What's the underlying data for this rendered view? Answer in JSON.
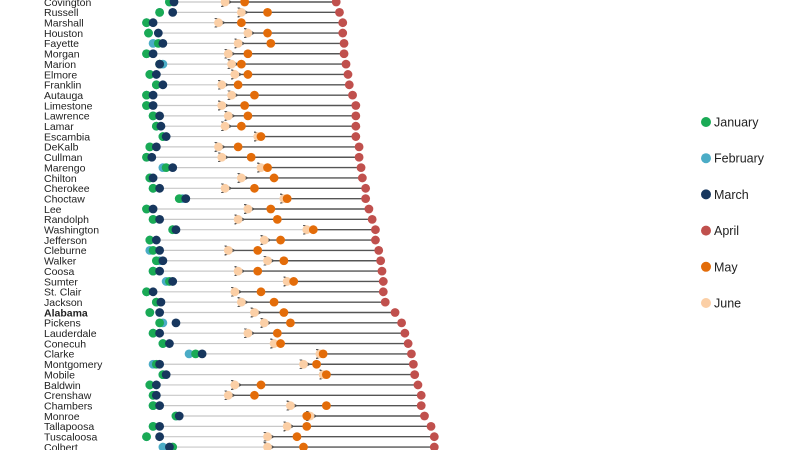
{
  "chart_data": {
    "type": "dot-plot",
    "title": "",
    "xlabel": "",
    "ylabel": "",
    "x_unit": "month index (1 = Jan start)",
    "xlim": [
      1.0,
      6.4
    ],
    "legend": {
      "placement": "right",
      "entries": [
        {
          "name": "January",
          "color": "#1aaa55"
        },
        {
          "name": "February",
          "color": "#4bacc6"
        },
        {
          "name": "March",
          "color": "#17375e"
        },
        {
          "name": "April",
          "color": "#c0504d"
        },
        {
          "name": "May",
          "color": "#e36c09"
        },
        {
          "name": "June",
          "color": "#fbcfa6"
        }
      ]
    },
    "months": [
      "January",
      "February",
      "March",
      "April",
      "May",
      "June"
    ],
    "rows": [
      {
        "county": "Covington",
        "values": [
          1.45,
          1.45,
          1.52,
          4.0,
          2.6,
          2.3
        ]
      },
      {
        "county": "Russell",
        "values": [
          1.3,
          1.3,
          1.5,
          4.05,
          2.95,
          2.55
        ]
      },
      {
        "county": "Marshall",
        "values": [
          1.1,
          1.1,
          1.2,
          4.1,
          2.55,
          2.2
        ]
      },
      {
        "county": "Houston",
        "values": [
          1.13,
          1.13,
          1.28,
          4.1,
          2.95,
          2.65
        ]
      },
      {
        "county": "Fayette",
        "values": [
          1.28,
          1.2,
          1.35,
          4.12,
          3.0,
          2.5
        ]
      },
      {
        "county": "Morgan",
        "values": [
          1.1,
          1.1,
          1.2,
          4.12,
          2.65,
          2.35
        ]
      },
      {
        "county": "Marion",
        "values": [
          1.3,
          1.35,
          1.3,
          4.15,
          2.55,
          2.4
        ]
      },
      {
        "county": "Elmore",
        "values": [
          1.15,
          1.15,
          1.25,
          4.18,
          2.65,
          2.45
        ]
      },
      {
        "county": "Franklin",
        "values": [
          1.25,
          1.25,
          1.35,
          4.2,
          2.5,
          2.25
        ]
      },
      {
        "county": "Autauga",
        "values": [
          1.1,
          1.1,
          1.2,
          4.25,
          2.75,
          2.4
        ]
      },
      {
        "county": "Limestone",
        "values": [
          1.1,
          1.1,
          1.2,
          4.3,
          2.6,
          2.25
        ]
      },
      {
        "county": "Lawrence",
        "values": [
          1.2,
          1.2,
          1.3,
          4.3,
          2.65,
          2.35
        ]
      },
      {
        "county": "Lamar",
        "values": [
          1.25,
          1.25,
          1.32,
          4.3,
          2.55,
          2.3
        ]
      },
      {
        "county": "Escambia",
        "values": [
          1.35,
          1.35,
          1.4,
          4.3,
          2.85,
          2.8
        ]
      },
      {
        "county": "DeKalb",
        "values": [
          1.15,
          1.15,
          1.25,
          4.35,
          2.5,
          2.2
        ]
      },
      {
        "county": "Cullman",
        "values": [
          1.1,
          1.1,
          1.18,
          4.35,
          2.7,
          2.25
        ]
      },
      {
        "county": "Marengo",
        "values": [
          1.4,
          1.35,
          1.5,
          4.38,
          2.95,
          2.85
        ]
      },
      {
        "county": "Chilton",
        "values": [
          1.15,
          1.15,
          1.2,
          4.4,
          3.05,
          2.55
        ]
      },
      {
        "county": "Cherokee",
        "values": [
          1.2,
          1.2,
          1.3,
          4.45,
          2.75,
          2.3
        ]
      },
      {
        "county": "Choctaw",
        "values": [
          1.6,
          1.65,
          1.7,
          4.45,
          3.25,
          3.2
        ]
      },
      {
        "county": "Lee",
        "values": [
          1.1,
          1.1,
          1.2,
          4.5,
          3.0,
          2.65
        ]
      },
      {
        "county": "Randolph",
        "values": [
          1.2,
          1.2,
          1.3,
          4.55,
          3.1,
          2.5
        ]
      },
      {
        "county": "Washington",
        "values": [
          1.5,
          1.5,
          1.55,
          4.6,
          3.65,
          3.55
        ]
      },
      {
        "county": "Jefferson",
        "values": [
          1.15,
          1.15,
          1.25,
          4.6,
          3.15,
          2.9
        ]
      },
      {
        "county": "Cleburne",
        "values": [
          1.2,
          1.15,
          1.3,
          4.65,
          2.8,
          2.35
        ]
      },
      {
        "county": "Walker",
        "values": [
          1.25,
          1.3,
          1.35,
          4.68,
          3.2,
          2.95
        ]
      },
      {
        "county": "Coosa",
        "values": [
          1.2,
          1.2,
          1.3,
          4.7,
          2.8,
          2.5
        ]
      },
      {
        "county": "Sumter",
        "values": [
          1.45,
          1.4,
          1.5,
          4.72,
          3.35,
          3.25
        ]
      },
      {
        "county": "St. Clair",
        "values": [
          1.1,
          1.1,
          1.2,
          4.72,
          2.85,
          2.45
        ]
      },
      {
        "county": "Jackson",
        "values": [
          1.25,
          1.25,
          1.32,
          4.75,
          3.05,
          2.55
        ]
      },
      {
        "county": "Alabama",
        "bold": true,
        "values": [
          1.15,
          1.15,
          1.3,
          4.9,
          3.2,
          2.75
        ]
      },
      {
        "county": "Pickens",
        "values": [
          1.3,
          1.35,
          1.55,
          5.0,
          3.3,
          2.9
        ]
      },
      {
        "county": "Lauderdale",
        "values": [
          1.2,
          1.2,
          1.3,
          5.05,
          3.1,
          2.65
        ]
      },
      {
        "county": "Conecuh",
        "values": [
          1.35,
          1.35,
          1.45,
          5.1,
          3.15,
          3.05
        ]
      },
      {
        "county": "Clarke",
        "values": [
          1.85,
          1.75,
          1.95,
          5.15,
          3.8,
          3.75
        ]
      },
      {
        "county": "Montgomery",
        "values": [
          1.25,
          1.2,
          1.3,
          5.18,
          3.7,
          3.5
        ]
      },
      {
        "county": "Mobile",
        "values": [
          1.35,
          1.35,
          1.4,
          5.2,
          3.85,
          3.8
        ]
      },
      {
        "county": "Baldwin",
        "values": [
          1.15,
          1.15,
          1.25,
          5.25,
          2.85,
          2.45
        ]
      },
      {
        "county": "Crenshaw",
        "values": [
          1.2,
          1.2,
          1.25,
          5.3,
          2.75,
          2.35
        ]
      },
      {
        "county": "Chambers",
        "values": [
          1.2,
          1.2,
          1.3,
          5.3,
          3.85,
          3.3
        ]
      },
      {
        "county": "Monroe",
        "values": [
          1.55,
          1.55,
          1.6,
          5.35,
          3.55,
          3.6
        ]
      },
      {
        "county": "Tallapoosa",
        "values": [
          1.2,
          1.2,
          1.3,
          5.45,
          3.55,
          3.25
        ]
      },
      {
        "county": "Tuscaloosa",
        "values": [
          1.1,
          1.1,
          1.3,
          5.5,
          3.4,
          2.95
        ]
      },
      {
        "county": "Colbert",
        "values": [
          1.5,
          1.35,
          1.45,
          5.5,
          3.5,
          2.95
        ]
      }
    ]
  }
}
